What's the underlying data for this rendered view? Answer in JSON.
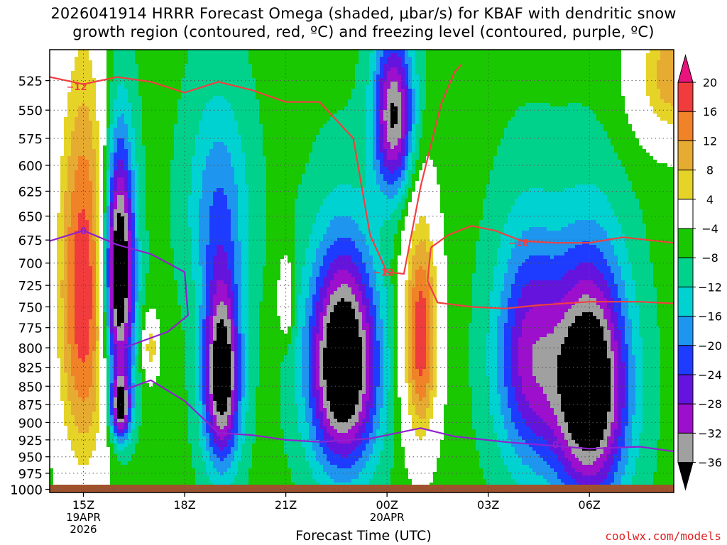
{
  "title": {
    "line1": "2026041914 HRRR Forecast Omega (shaded, μbar/s) for KBAF with dendritic snow",
    "line2": "growth region (contoured, red, ºC) and freezing level (contoured, purple, ºC)"
  },
  "credit": "coolwx.com/models",
  "chart_data": {
    "type": "heatmap",
    "xlabel": "Forecast Time (UTC)",
    "ylabel": "",
    "x_ticks": [
      {
        "hour": 0,
        "label": "15Z",
        "sub1": "19APR",
        "sub2": "2026"
      },
      {
        "hour": 3,
        "label": "18Z"
      },
      {
        "hour": 6,
        "label": "21Z"
      },
      {
        "hour": 9,
        "label": "00Z",
        "sub1": "20APR"
      },
      {
        "hour": 12,
        "label": "03Z"
      },
      {
        "hour": 15,
        "label": "06Z"
      }
    ],
    "xlim": [
      -1,
      17.5
    ],
    "y_ticks": [
      525,
      550,
      575,
      600,
      625,
      650,
      675,
      700,
      725,
      750,
      775,
      800,
      825,
      850,
      875,
      900,
      925,
      950,
      975,
      1000
    ],
    "ylim": [
      500,
      1005
    ],
    "y_scale": "log-pressure",
    "grid": true,
    "colorbar": {
      "labels": [
        "20",
        "16",
        "12",
        "8",
        "4",
        "−4",
        "−8",
        "−12",
        "−16",
        "−20",
        "−24",
        "−28",
        "−32",
        "−36"
      ],
      "colors": [
        "#e8137c",
        "#f03c3c",
        "#f08228",
        "#e6ac32",
        "#e6d328",
        "#ffffff",
        "#19c800",
        "#00d28c",
        "#00d2d2",
        "#1e96f0",
        "#1e3cff",
        "#6414dc",
        "#9b0fcd",
        "#a0a0a0",
        "#000000"
      ]
    },
    "omega_blobs": [
      {
        "name": "pink column 15Z",
        "hour": 0,
        "p": 730,
        "min": 24,
        "wh": 0.85,
        "wp": 250
      },
      {
        "name": "ascent 16Z",
        "hour": 1.05,
        "p": 710,
        "min": -44,
        "wh": 0.45,
        "wp": 140
      },
      {
        "name": "ascent 16Z low",
        "hour": 1.1,
        "p": 880,
        "min": -30,
        "wh": 0.3,
        "wp": 45
      },
      {
        "name": "descent 17Z",
        "hour": 2.0,
        "p": 800,
        "min": 12,
        "wh": 0.25,
        "wp": 40
      },
      {
        "name": "ascent 19Z",
        "hour": 4.1,
        "p": 835,
        "min": -38,
        "wh": 0.55,
        "wp": 120
      },
      {
        "name": "mid ascent 19Z",
        "hour": 4.0,
        "p": 640,
        "min": -14,
        "wh": 0.9,
        "wp": 110
      },
      {
        "name": "descent 21Z",
        "hour": 6.0,
        "p": 740,
        "min": 10,
        "wh": 0.22,
        "wp": 45
      },
      {
        "name": "ascent 23Z",
        "hour": 7.7,
        "p": 820,
        "min": -42,
        "wh": 1.0,
        "wp": 140
      },
      {
        "name": "upper ascent 00Z",
        "hour": 9.2,
        "p": 555,
        "min": -32,
        "wh": 0.6,
        "wp": 70
      },
      {
        "name": "descent 01Z",
        "hour": 10.0,
        "p": 785,
        "min": 24,
        "wh": 0.55,
        "wp": 150
      },
      {
        "name": "ascent 06Z",
        "hour": 15.0,
        "p": 850,
        "min": -42,
        "wh": 1.1,
        "wp": 160
      },
      {
        "name": "ascent 04Z",
        "hour": 13.2,
        "p": 810,
        "min": -24,
        "wh": 1.0,
        "wp": 150
      },
      {
        "name": "descent 08Z top",
        "hour": 17.5,
        "p": 520,
        "min": 16,
        "wh": 1.2,
        "wp": 60
      }
    ],
    "omega_background": -7,
    "dgz_minus12": [
      [
        -1,
        522
      ],
      [
        0,
        528
      ],
      [
        1,
        522
      ],
      [
        2,
        526
      ],
      [
        3,
        535
      ],
      [
        4,
        526
      ],
      [
        5,
        533
      ],
      [
        6,
        543
      ],
      [
        7,
        543
      ],
      [
        8,
        575
      ],
      [
        8.5,
        670
      ],
      [
        9,
        710
      ],
      [
        9.5,
        712
      ],
      [
        10,
        620
      ],
      [
        10.6,
        545
      ],
      [
        11,
        518
      ],
      [
        11.2,
        512
      ]
    ],
    "dgz_minus18": [
      [
        10.3,
        683
      ],
      [
        10.8,
        670
      ],
      [
        11.5,
        660
      ],
      [
        12.2,
        665
      ],
      [
        13,
        676
      ],
      [
        14,
        678
      ],
      [
        15,
        678
      ],
      [
        16,
        672
      ],
      [
        17.5,
        678
      ]
    ],
    "dgz_lower": [
      [
        10.3,
        683
      ],
      [
        10.2,
        720
      ],
      [
        10.5,
        745
      ],
      [
        11.5,
        750
      ],
      [
        12.5,
        752
      ],
      [
        13.5,
        748
      ],
      [
        15,
        744
      ],
      [
        16.5,
        744
      ],
      [
        17.5,
        746
      ]
    ],
    "dgz_labels": [
      {
        "text": "−12",
        "hour": -0.2,
        "p": 530
      },
      {
        "text": "−12",
        "hour": 8.9,
        "p": 710
      },
      {
        "text": "−18",
        "hour": 12.9,
        "p": 678
      }
    ],
    "freezing_level": [
      [
        -1,
        676
      ],
      [
        0,
        665
      ],
      [
        1,
        680
      ],
      [
        2,
        690
      ],
      [
        3,
        710
      ],
      [
        3.1,
        760
      ],
      [
        2.5,
        780
      ],
      [
        1.2,
        800
      ]
    ],
    "freezing_level_lower": [
      [
        1.2,
        855
      ],
      [
        2.0,
        842
      ],
      [
        3.0,
        870
      ],
      [
        4.0,
        915
      ],
      [
        5,
        918
      ],
      [
        6,
        925
      ],
      [
        7,
        928
      ],
      [
        8.5,
        923
      ],
      [
        10.0,
        908
      ],
      [
        11,
        920
      ],
      [
        12.5,
        928
      ],
      [
        13.5,
        932
      ],
      [
        15.0,
        938
      ],
      [
        16.5,
        935
      ],
      [
        17.5,
        942
      ]
    ],
    "fzl_labels": [
      {
        "text": "0",
        "hour": 0,
        "p": 665
      },
      {
        "text": "0",
        "hour": 14.0,
        "p": 932
      }
    ]
  }
}
